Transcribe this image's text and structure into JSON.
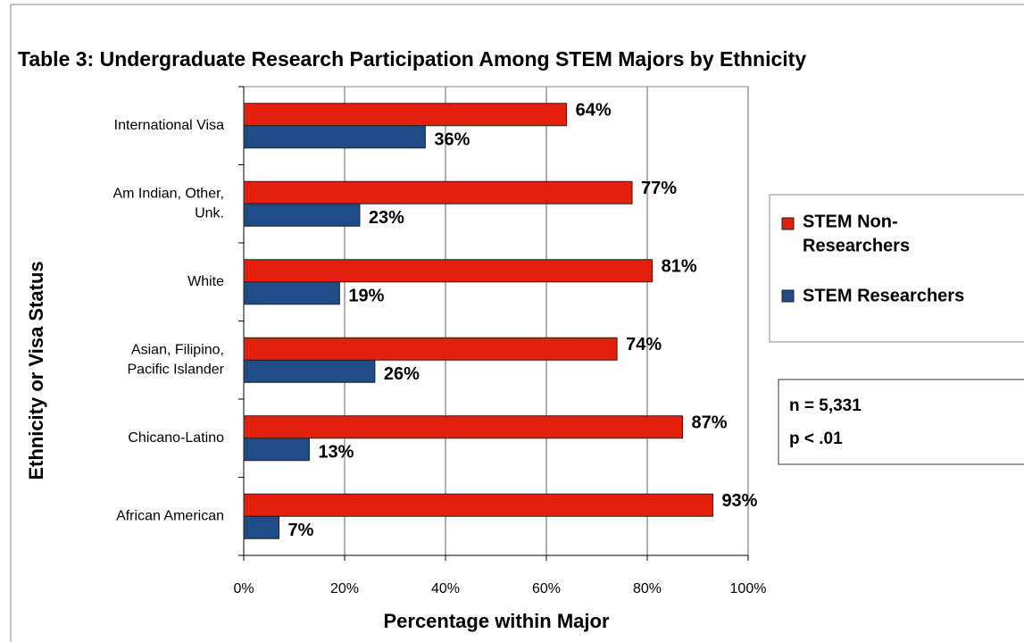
{
  "chart_data": {
    "type": "bar",
    "orientation": "horizontal",
    "title": "Table 3: Undergraduate Research Participation Among STEM Majors by Ethnicity",
    "x_label": "Percentage within Major",
    "y_label": "Ethnicity or Visa Status",
    "categories": [
      "International Visa",
      "Am Indian, Other,\nUnk.",
      "White",
      "Asian, Filipino,\nPacific Islander",
      "Chicano-Latino",
      "African American"
    ],
    "series": [
      {
        "name": "STEM Non-\nResearchers",
        "color": "#e3200b",
        "values": [
          64,
          77,
          81,
          74,
          87,
          93
        ],
        "value_labels": [
          "64%",
          "77%",
          "81%",
          "74%",
          "87%",
          "93%"
        ]
      },
      {
        "name": "STEM Researchers",
        "color": "#1f4b87",
        "values": [
          36,
          23,
          19,
          26,
          13,
          7
        ],
        "value_labels": [
          "36%",
          "23%",
          "19%",
          "26%",
          "13%",
          "7%"
        ]
      }
    ],
    "xlim": [
      0,
      100
    ],
    "xticks": [
      {
        "value": 0,
        "label": "0%"
      },
      {
        "value": 20,
        "label": "20%"
      },
      {
        "value": 40,
        "label": "40%"
      },
      {
        "value": 60,
        "label": "60%"
      },
      {
        "value": 80,
        "label": "80%"
      },
      {
        "value": 100,
        "label": "100%"
      }
    ],
    "grid": true,
    "legend": "right",
    "annotations": [
      "n = 5,331",
      "p < .01"
    ]
  }
}
